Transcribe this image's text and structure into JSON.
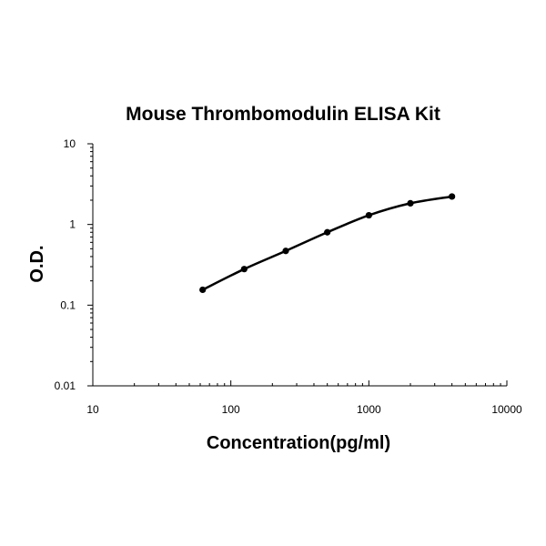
{
  "chart_data": {
    "type": "line",
    "title": "Mouse Thrombomodulin ELISA Kit",
    "xlabel": "Concentration(pg/ml)",
    "ylabel": "O.D.",
    "x_scale": "log",
    "y_scale": "log",
    "xlim": [
      10,
      10000
    ],
    "ylim": [
      0.01,
      10
    ],
    "x_ticks": [
      "10",
      "100",
      "1000",
      "10000"
    ],
    "y_ticks": [
      "0.01",
      "0.1",
      "1",
      "10"
    ],
    "grid": false,
    "legend": "none",
    "line_color": "#000000",
    "marker_color": "#000000",
    "series": [
      {
        "x": [
          62.5,
          125,
          250,
          500,
          1000,
          2000,
          4000
        ],
        "y": [
          0.155,
          0.28,
          0.47,
          0.8,
          1.3,
          1.83,
          2.22
        ]
      }
    ]
  }
}
